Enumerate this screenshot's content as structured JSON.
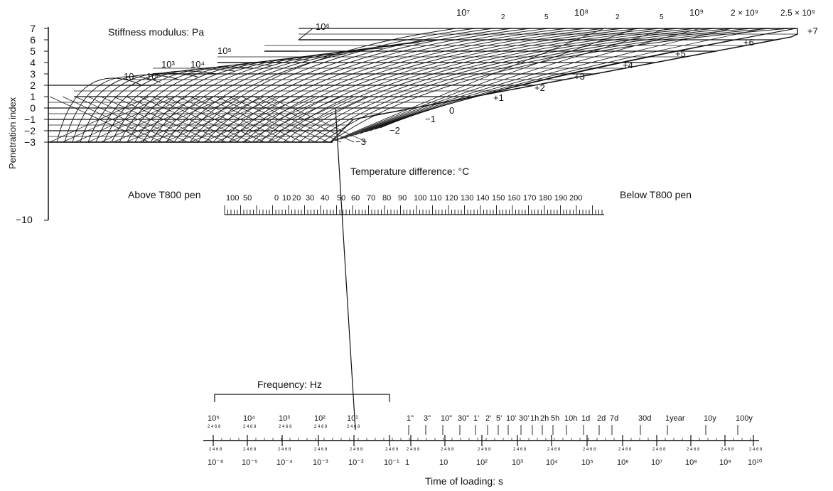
{
  "nomograph": {
    "stiffness_label": "Stiffness modulus: Pa",
    "pi_axis_label": "Penetration index",
    "pi_ticks": [
      "7",
      "6",
      "5",
      "4",
      "3",
      "2",
      "1",
      "0",
      "−1",
      "−2",
      "−3"
    ],
    "pi_bottom_tick": "−10",
    "pi_curve_labels": [
      "−3",
      "−2",
      "−1",
      "0",
      "+1",
      "+2",
      "+3",
      "+4",
      "+5",
      "+6",
      "+7"
    ],
    "stiffness_top_labels": [
      "10⁷",
      "2",
      "5",
      "10⁸",
      "2",
      "5",
      "10⁹",
      "2 × 10⁹",
      "2.5 × 10⁹"
    ],
    "stiffness_step_labels": [
      "10",
      "10²",
      "10³",
      "10⁴",
      "10⁵",
      "10⁶"
    ],
    "temp_label": "Temperature difference: °C",
    "temp_above": "Above T800 pen",
    "temp_below": "Below T800 pen",
    "temp_scale_labels": [
      "100",
      "50",
      "0",
      "10",
      "20",
      "30",
      "40",
      "50",
      "60",
      "70",
      "80",
      "90",
      "100",
      "110",
      "120",
      "130",
      "140",
      "150",
      "160",
      "170",
      "180",
      "190",
      "200"
    ],
    "freq_label": "Frequency: Hz",
    "freq_values": [
      "10⁵",
      "10⁴",
      "10³",
      "10²",
      "10¹"
    ],
    "time_labels_top": [
      "1\"",
      "3\"",
      "10\"",
      "30\"",
      "1'",
      "2'",
      "5'",
      "10'",
      "30'",
      "1h",
      "2h",
      "5h",
      "10h",
      "1d",
      "2d",
      "7d",
      "30d",
      "1year",
      "10y",
      "100y"
    ],
    "time_labels_bottom": [
      "10⁻⁶",
      "10⁻⁵",
      "10⁻⁴",
      "10⁻³",
      "10⁻²",
      "10⁻¹",
      "1",
      "10",
      "10²",
      "10³",
      "10⁴",
      "10⁵",
      "10⁶",
      "10⁷",
      "10⁸",
      "10⁹",
      "10¹⁰"
    ],
    "time_axis_label": "Time of loading: s"
  }
}
